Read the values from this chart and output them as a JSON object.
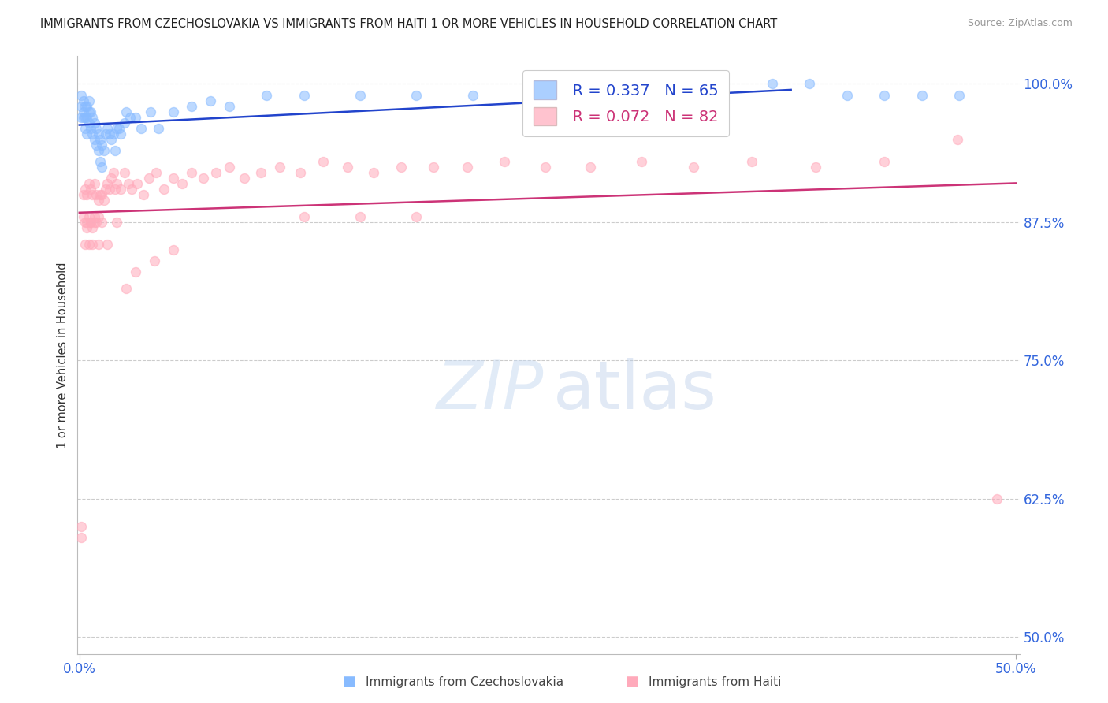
{
  "title": "IMMIGRANTS FROM CZECHOSLOVAKIA VS IMMIGRANTS FROM HAITI 1 OR MORE VEHICLES IN HOUSEHOLD CORRELATION CHART",
  "source": "Source: ZipAtlas.com",
  "ylabel": "1 or more Vehicles in Household",
  "yticks": [
    0.5,
    0.625,
    0.75,
    0.875,
    1.0
  ],
  "ytick_labels": [
    "50.0%",
    "62.5%",
    "75.0%",
    "87.5%",
    "100.0%"
  ],
  "xlim": [
    -0.001,
    0.502
  ],
  "ylim": [
    0.485,
    1.025
  ],
  "legend_r1": "R = 0.337",
  "legend_n1": "N = 65",
  "legend_r2": "R = 0.072",
  "legend_n2": "N = 82",
  "color_czech": "#88bbff",
  "color_haiti": "#ffaabb",
  "trendline_color_czech": "#2244cc",
  "trendline_color_haiti": "#cc3377",
  "marker_size": 75,
  "czech_x": [
    0.001,
    0.001,
    0.001,
    0.002,
    0.002,
    0.002,
    0.003,
    0.003,
    0.003,
    0.004,
    0.004,
    0.004,
    0.005,
    0.005,
    0.005,
    0.006,
    0.006,
    0.007,
    0.007,
    0.008,
    0.008,
    0.009,
    0.009,
    0.01,
    0.01,
    0.011,
    0.011,
    0.012,
    0.012,
    0.013,
    0.014,
    0.015,
    0.016,
    0.017,
    0.018,
    0.019,
    0.02,
    0.021,
    0.022,
    0.024,
    0.025,
    0.027,
    0.03,
    0.033,
    0.038,
    0.042,
    0.05,
    0.06,
    0.07,
    0.08,
    0.1,
    0.12,
    0.15,
    0.18,
    0.21,
    0.24,
    0.27,
    0.31,
    0.34,
    0.37,
    0.39,
    0.41,
    0.43,
    0.45,
    0.47
  ],
  "czech_y": [
    0.97,
    0.98,
    0.99,
    0.97,
    0.975,
    0.985,
    0.96,
    0.97,
    0.98,
    0.955,
    0.97,
    0.98,
    0.965,
    0.975,
    0.985,
    0.96,
    0.975,
    0.955,
    0.97,
    0.95,
    0.965,
    0.945,
    0.96,
    0.94,
    0.955,
    0.93,
    0.95,
    0.925,
    0.945,
    0.94,
    0.955,
    0.96,
    0.955,
    0.95,
    0.955,
    0.94,
    0.96,
    0.96,
    0.955,
    0.965,
    0.975,
    0.97,
    0.97,
    0.96,
    0.975,
    0.96,
    0.975,
    0.98,
    0.985,
    0.98,
    0.99,
    0.99,
    0.99,
    0.99,
    0.99,
    0.99,
    0.99,
    0.99,
    0.99,
    1.0,
    1.0,
    0.99,
    0.99,
    0.99,
    0.99
  ],
  "haiti_x": [
    0.001,
    0.001,
    0.002,
    0.002,
    0.003,
    0.003,
    0.004,
    0.004,
    0.005,
    0.005,
    0.006,
    0.006,
    0.007,
    0.007,
    0.008,
    0.008,
    0.009,
    0.009,
    0.01,
    0.01,
    0.011,
    0.012,
    0.013,
    0.014,
    0.015,
    0.016,
    0.017,
    0.018,
    0.019,
    0.02,
    0.022,
    0.024,
    0.026,
    0.028,
    0.031,
    0.034,
    0.037,
    0.041,
    0.045,
    0.05,
    0.055,
    0.06,
    0.066,
    0.073,
    0.08,
    0.088,
    0.097,
    0.107,
    0.118,
    0.13,
    0.143,
    0.157,
    0.172,
    0.189,
    0.207,
    0.227,
    0.249,
    0.273,
    0.3,
    0.328,
    0.359,
    0.393,
    0.43,
    0.469,
    0.49,
    0.12,
    0.15,
    0.18,
    0.05,
    0.04,
    0.03,
    0.025,
    0.02,
    0.015,
    0.012,
    0.01,
    0.008,
    0.007,
    0.006,
    0.005,
    0.004,
    0.003
  ],
  "haiti_y": [
    0.59,
    0.6,
    0.88,
    0.9,
    0.875,
    0.905,
    0.87,
    0.9,
    0.88,
    0.91,
    0.875,
    0.905,
    0.87,
    0.9,
    0.88,
    0.91,
    0.875,
    0.9,
    0.88,
    0.895,
    0.9,
    0.9,
    0.895,
    0.905,
    0.91,
    0.905,
    0.915,
    0.92,
    0.905,
    0.91,
    0.905,
    0.92,
    0.91,
    0.905,
    0.91,
    0.9,
    0.915,
    0.92,
    0.905,
    0.915,
    0.91,
    0.92,
    0.915,
    0.92,
    0.925,
    0.915,
    0.92,
    0.925,
    0.92,
    0.93,
    0.925,
    0.92,
    0.925,
    0.925,
    0.925,
    0.93,
    0.925,
    0.925,
    0.93,
    0.925,
    0.93,
    0.925,
    0.93,
    0.95,
    0.625,
    0.88,
    0.88,
    0.88,
    0.85,
    0.84,
    0.83,
    0.815,
    0.875,
    0.855,
    0.875,
    0.855,
    0.875,
    0.855,
    0.875,
    0.855,
    0.875,
    0.855
  ]
}
